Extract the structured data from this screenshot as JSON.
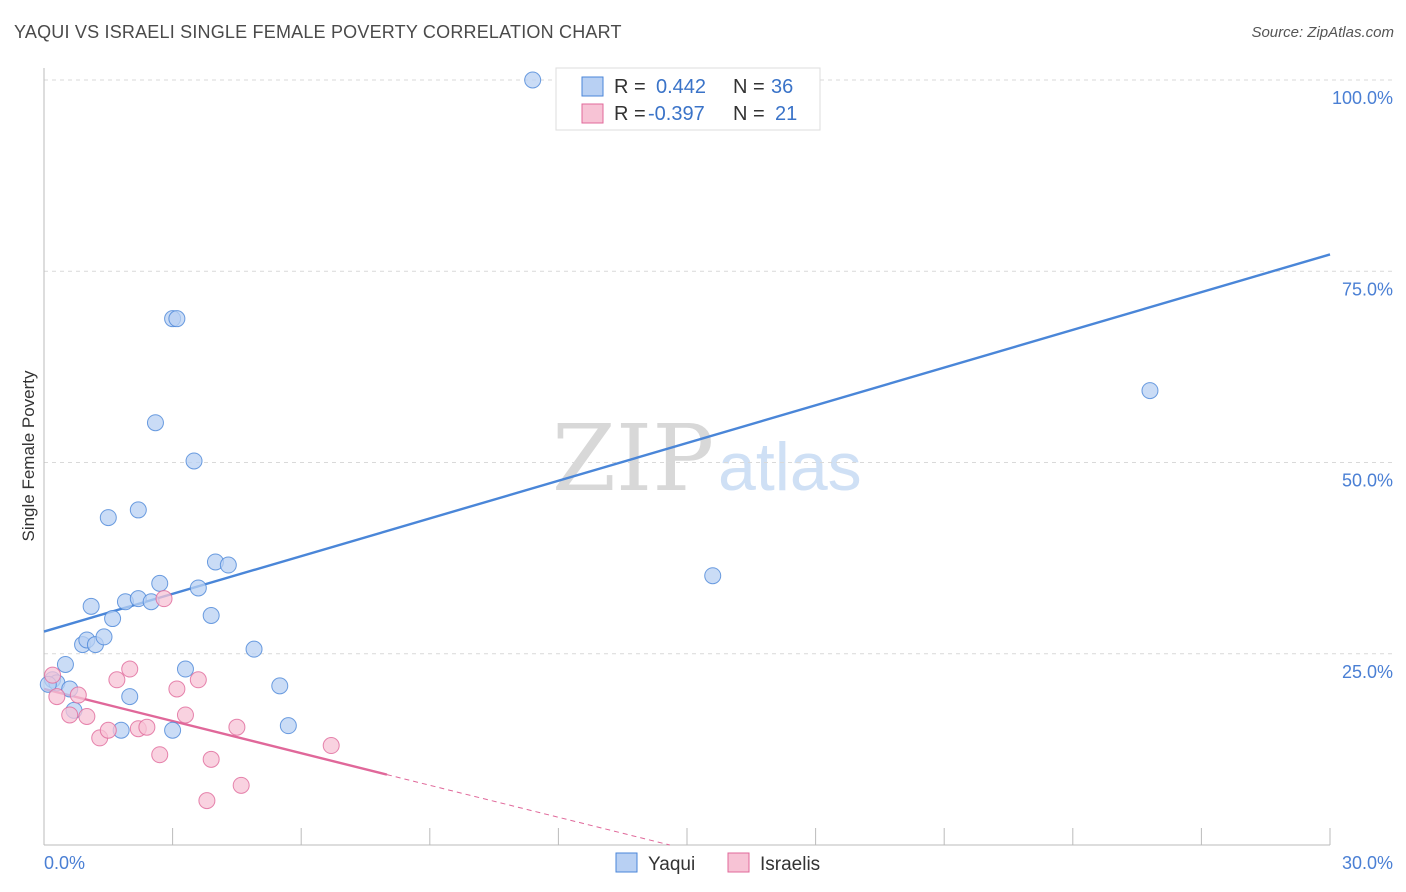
{
  "header": {
    "title": "YAQUI VS ISRAELI SINGLE FEMALE POVERTY CORRELATION CHART",
    "source": "Source: ZipAtlas.com"
  },
  "watermark": {
    "zip": "ZIP",
    "atlas": "atlas"
  },
  "chart_data": {
    "type": "scatter",
    "title": "YAQUI VS ISRAELI SINGLE FEMALE POVERTY CORRELATION CHART",
    "xlabel": "",
    "ylabel": "Single Female Poverty",
    "xlim": [
      0,
      30
    ],
    "ylim": [
      0,
      100
    ],
    "x_tick_labels": [
      "0.0%",
      "30.0%"
    ],
    "y_tick_labels": [
      "100.0%",
      "75.0%",
      "50.0%",
      "25.0%"
    ],
    "y_ticks": [
      100,
      75,
      50,
      25
    ],
    "legend_stats": [
      {
        "series": "Yaqui",
        "r_label": "R =",
        "r_value": "0.442",
        "n_label": "N =",
        "n_value": "36"
      },
      {
        "series": "Israelis",
        "r_label": "R =",
        "r_value": "-0.397",
        "n_label": "N =",
        "n_value": "21"
      }
    ],
    "series": [
      {
        "name": "Yaqui",
        "color": "#4a86d8",
        "fill": "#b8d0f3",
        "trend": {
          "x0": 0,
          "y0": 27.9,
          "x1": 30,
          "y1": 77.2,
          "dashed_from": null
        },
        "points": [
          [
            0.2,
            21.6
          ],
          [
            0.3,
            21.2
          ],
          [
            0.5,
            23.6
          ],
          [
            0.6,
            20.4
          ],
          [
            0.7,
            17.6
          ],
          [
            0.9,
            26.2
          ],
          [
            1.0,
            26.8
          ],
          [
            1.1,
            31.2
          ],
          [
            1.2,
            26.2
          ],
          [
            1.4,
            27.2
          ],
          [
            1.5,
            42.8
          ],
          [
            1.6,
            29.6
          ],
          [
            1.8,
            15.0
          ],
          [
            1.9,
            31.8
          ],
          [
            2.0,
            19.4
          ],
          [
            2.2,
            32.2
          ],
          [
            2.2,
            43.8
          ],
          [
            2.5,
            31.8
          ],
          [
            2.6,
            55.2
          ],
          [
            2.7,
            34.2
          ],
          [
            3.0,
            68.8
          ],
          [
            3.0,
            15.0
          ],
          [
            3.1,
            68.8
          ],
          [
            3.3,
            23.0
          ],
          [
            3.5,
            50.2
          ],
          [
            3.6,
            33.6
          ],
          [
            3.9,
            30.0
          ],
          [
            4.0,
            37.0
          ],
          [
            4.3,
            36.6
          ],
          [
            4.9,
            25.6
          ],
          [
            5.5,
            20.8
          ],
          [
            5.7,
            15.6
          ],
          [
            11.4,
            100.0
          ],
          [
            15.6,
            35.2
          ],
          [
            25.8,
            59.4
          ],
          [
            0.1,
            21.0
          ]
        ]
      },
      {
        "name": "Israelis",
        "color": "#e0689a",
        "fill": "#f7c3d5",
        "trend": {
          "x0": 0,
          "y0": 20.4,
          "x1": 8.0,
          "y1": 9.2,
          "dashed_to_x": 14.6,
          "dashed_to_y": 0.0
        },
        "points": [
          [
            0.2,
            22.2
          ],
          [
            0.3,
            19.4
          ],
          [
            0.6,
            17.0
          ],
          [
            0.8,
            19.6
          ],
          [
            1.0,
            16.8
          ],
          [
            1.3,
            14.0
          ],
          [
            1.5,
            15.0
          ],
          [
            1.7,
            21.6
          ],
          [
            2.0,
            23.0
          ],
          [
            2.2,
            15.2
          ],
          [
            2.4,
            15.4
          ],
          [
            2.7,
            11.8
          ],
          [
            2.8,
            32.2
          ],
          [
            3.1,
            20.4
          ],
          [
            3.3,
            17.0
          ],
          [
            3.6,
            21.6
          ],
          [
            3.8,
            5.8
          ],
          [
            3.9,
            11.2
          ],
          [
            4.5,
            15.4
          ],
          [
            4.6,
            7.8
          ],
          [
            6.7,
            13.0
          ]
        ]
      }
    ]
  }
}
